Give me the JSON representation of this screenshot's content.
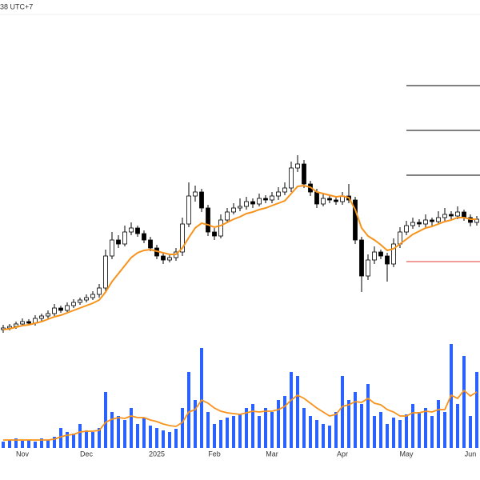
{
  "chart_data": {
    "type": "candlestick",
    "clock": "38 UTC+7",
    "categories": [
      null,
      null,
      null,
      "Nov",
      null,
      null,
      null,
      null,
      null,
      null,
      null,
      null,
      null,
      "Dec",
      null,
      null,
      null,
      null,
      null,
      null,
      null,
      null,
      null,
      null,
      "2025",
      null,
      null,
      null,
      null,
      null,
      null,
      null,
      null,
      "Feb",
      null,
      null,
      null,
      null,
      null,
      null,
      null,
      null,
      "Mar",
      null,
      null,
      null,
      null,
      null,
      null,
      null,
      null,
      null,
      null,
      "Apr",
      null,
      null,
      null,
      null,
      null,
      null,
      null,
      null,
      null,
      "May",
      null,
      null,
      null,
      null,
      null,
      null,
      null,
      null,
      null,
      "Jun",
      null
    ],
    "open": [
      28,
      30,
      32,
      35,
      38,
      36,
      42,
      45,
      48,
      55,
      52,
      58,
      62,
      65,
      68,
      72,
      80,
      120,
      140,
      135,
      150,
      155,
      148,
      140,
      130,
      120,
      115,
      118,
      125,
      160,
      195,
      200,
      180,
      150,
      145,
      165,
      175,
      180,
      182,
      188,
      185,
      192,
      190,
      195,
      200,
      205,
      230,
      235,
      210,
      200,
      185,
      192,
      190,
      188,
      195,
      190,
      140,
      95,
      115,
      125,
      120,
      110,
      135,
      150,
      158,
      162,
      160,
      165,
      163,
      168,
      172,
      170,
      175,
      168,
      162
    ],
    "high": [
      34,
      35,
      38,
      42,
      41,
      46,
      48,
      52,
      60,
      58,
      62,
      66,
      68,
      72,
      76,
      85,
      128,
      150,
      146,
      158,
      162,
      158,
      152,
      144,
      134,
      124,
      122,
      130,
      168,
      212,
      208,
      204,
      184,
      155,
      172,
      180,
      186,
      192,
      194,
      192,
      198,
      196,
      200,
      206,
      212,
      238,
      246,
      240,
      214,
      204,
      198,
      196,
      194,
      200,
      210,
      194,
      144,
      122,
      132,
      128,
      124,
      142,
      156,
      164,
      168,
      166,
      172,
      168,
      176,
      180,
      176,
      182,
      178,
      172,
      170
    ],
    "low": [
      24,
      27,
      29,
      32,
      33,
      33,
      39,
      42,
      45,
      49,
      49,
      55,
      59,
      62,
      65,
      68,
      76,
      116,
      130,
      132,
      146,
      144,
      136,
      126,
      116,
      110,
      112,
      114,
      120,
      156,
      188,
      175,
      145,
      140,
      142,
      162,
      172,
      176,
      178,
      180,
      182,
      186,
      186,
      190,
      196,
      200,
      225,
      205,
      195,
      180,
      182,
      186,
      184,
      184,
      186,
      135,
      75,
      90,
      110,
      116,
      88,
      106,
      130,
      146,
      154,
      156,
      156,
      158,
      160,
      164,
      166,
      166,
      164,
      157,
      158
    ],
    "close": [
      30,
      32,
      35,
      38,
      36,
      42,
      45,
      48,
      55,
      52,
      58,
      62,
      65,
      68,
      72,
      80,
      120,
      140,
      135,
      150,
      155,
      148,
      140,
      130,
      120,
      115,
      118,
      125,
      160,
      195,
      200,
      180,
      150,
      145,
      165,
      175,
      180,
      182,
      188,
      185,
      192,
      190,
      195,
      200,
      205,
      230,
      235,
      210,
      200,
      185,
      192,
      190,
      188,
      195,
      190,
      140,
      95,
      115,
      125,
      120,
      110,
      135,
      150,
      158,
      162,
      160,
      165,
      163,
      168,
      172,
      170,
      175,
      168,
      162,
      166
    ],
    "ema": [
      28,
      29,
      31,
      33,
      34,
      36,
      38,
      41,
      44,
      46,
      49,
      52,
      55,
      58,
      61,
      65,
      75,
      88,
      98,
      108,
      118,
      124,
      127,
      128,
      126,
      124,
      122,
      122,
      130,
      143,
      155,
      161,
      159,
      156,
      158,
      162,
      166,
      169,
      173,
      175,
      178,
      180,
      183,
      186,
      189,
      198,
      207,
      208,
      206,
      200,
      198,
      196,
      194,
      195,
      193,
      178,
      155,
      145,
      140,
      134,
      127,
      129,
      135,
      141,
      147,
      151,
      155,
      157,
      160,
      163,
      165,
      168,
      168,
      166,
      166
    ],
    "ema_color": "#f7931a",
    "volume": [
      8,
      10,
      12,
      9,
      10,
      8,
      12,
      10,
      14,
      25,
      20,
      18,
      30,
      22,
      20,
      25,
      70,
      45,
      40,
      35,
      50,
      30,
      38,
      28,
      25,
      22,
      20,
      24,
      50,
      95,
      60,
      125,
      45,
      30,
      35,
      38,
      40,
      42,
      50,
      55,
      40,
      50,
      45,
      60,
      65,
      95,
      90,
      50,
      40,
      35,
      30,
      28,
      45,
      90,
      60,
      70,
      55,
      80,
      40,
      45,
      30,
      38,
      35,
      42,
      55,
      45,
      50,
      40,
      60,
      45,
      130,
      55,
      115,
      40,
      95
    ],
    "volume_ma": [
      10,
      10,
      10,
      10,
      10,
      10,
      10,
      10,
      11,
      14,
      16,
      17,
      20,
      21,
      21,
      22,
      32,
      36,
      38,
      37,
      40,
      38,
      38,
      35,
      33,
      30,
      28,
      27,
      32,
      45,
      48,
      60,
      56,
      50,
      46,
      44,
      43,
      42,
      44,
      46,
      45,
      46,
      46,
      48,
      52,
      60,
      66,
      62,
      56,
      50,
      45,
      40,
      42,
      52,
      54,
      58,
      57,
      62,
      56,
      54,
      48,
      45,
      40,
      40,
      44,
      44,
      46,
      45,
      48,
      48,
      66,
      62,
      72,
      65,
      70
    ],
    "volume_color": "#2962ff",
    "levels": [
      {
        "value": 333,
        "color": "#000000"
      },
      {
        "value": 277,
        "color": "#000000"
      },
      {
        "value": 221,
        "color": "#000000"
      },
      {
        "value": 113,
        "color": "#e53935"
      }
    ],
    "ylim": [
      0,
      420
    ],
    "volume_ylim": [
      0,
      130
    ]
  }
}
